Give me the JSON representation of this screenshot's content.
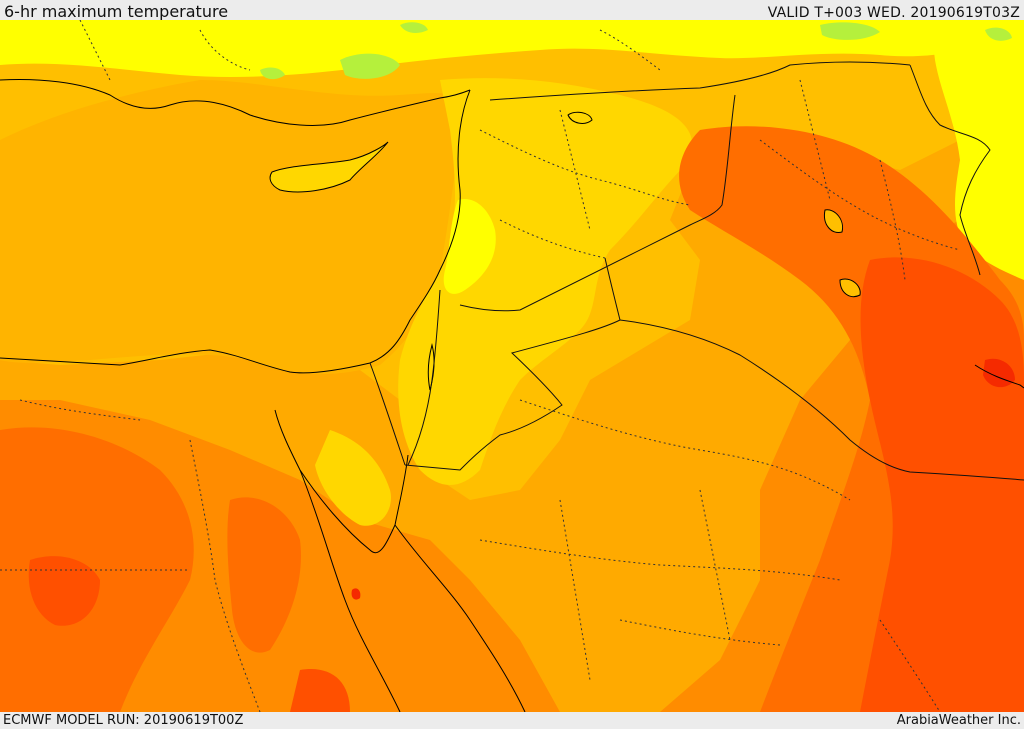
{
  "header": {
    "title": "6-hr maximum temperature",
    "valid": "VALID T+003 WED. 20190619T03Z"
  },
  "footer": {
    "model_run": "ECMWF MODEL RUN: 20190619T00Z",
    "credit": "ArabiaWeather Inc."
  },
  "map": {
    "field": "6-hr maximum temperature",
    "colors": {
      "light_green": "#a6f04a",
      "yellow_green": "#dcf51e",
      "yellow": "#ffff00",
      "gold": "#ffd700",
      "amber": "#ffbf00",
      "light_orange": "#ffaa00",
      "orange": "#ff8c00",
      "dark_orange": "#ff6e00",
      "red_orange": "#ff5000",
      "red": "#f52a00",
      "coastline": "#000000",
      "border": "#1a1a1a"
    }
  }
}
